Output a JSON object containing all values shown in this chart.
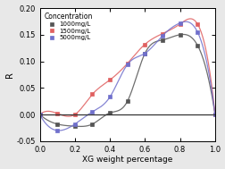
{
  "title": "",
  "xlabel": "XG weight percentage",
  "ylabel": "R",
  "xlim": [
    0.0,
    1.0
  ],
  "ylim": [
    -0.05,
    0.2
  ],
  "yticks": [
    -0.05,
    0.0,
    0.05,
    0.1,
    0.15,
    0.2
  ],
  "xticks": [
    0.0,
    0.2,
    0.4,
    0.6,
    0.8,
    1.0
  ],
  "series": [
    {
      "label": "1000mg/L",
      "color": "#555555",
      "marker": "s",
      "x_data": [
        0.0,
        0.1,
        0.2,
        0.3,
        0.4,
        0.5,
        0.6,
        0.7,
        0.8,
        0.9,
        1.0
      ],
      "y_data": [
        0.0,
        -0.018,
        -0.022,
        -0.018,
        0.003,
        0.025,
        0.115,
        0.14,
        0.15,
        0.13,
        0.0
      ]
    },
    {
      "label": "1500mg/L",
      "color": "#e06060",
      "marker": "s",
      "x_data": [
        0.0,
        0.1,
        0.2,
        0.3,
        0.4,
        0.5,
        0.6,
        0.7,
        0.8,
        0.9,
        1.0
      ],
      "y_data": [
        0.0,
        0.002,
        0.0,
        0.038,
        0.065,
        0.096,
        0.132,
        0.152,
        0.17,
        0.17,
        0.0
      ]
    },
    {
      "label": "5000mg/L",
      "color": "#7070cc",
      "marker": "s",
      "x_data": [
        0.0,
        0.1,
        0.2,
        0.3,
        0.4,
        0.5,
        0.6,
        0.7,
        0.8,
        0.9,
        1.0
      ],
      "y_data": [
        0.0,
        -0.03,
        -0.018,
        0.005,
        0.033,
        0.094,
        0.115,
        0.148,
        0.172,
        0.155,
        0.0
      ]
    }
  ],
  "legend_title": "Concentration",
  "background_color": "#e8e8e8",
  "plot_bg_color": "#ffffff",
  "hline_y": 0.0,
  "hline_color": "#333333"
}
